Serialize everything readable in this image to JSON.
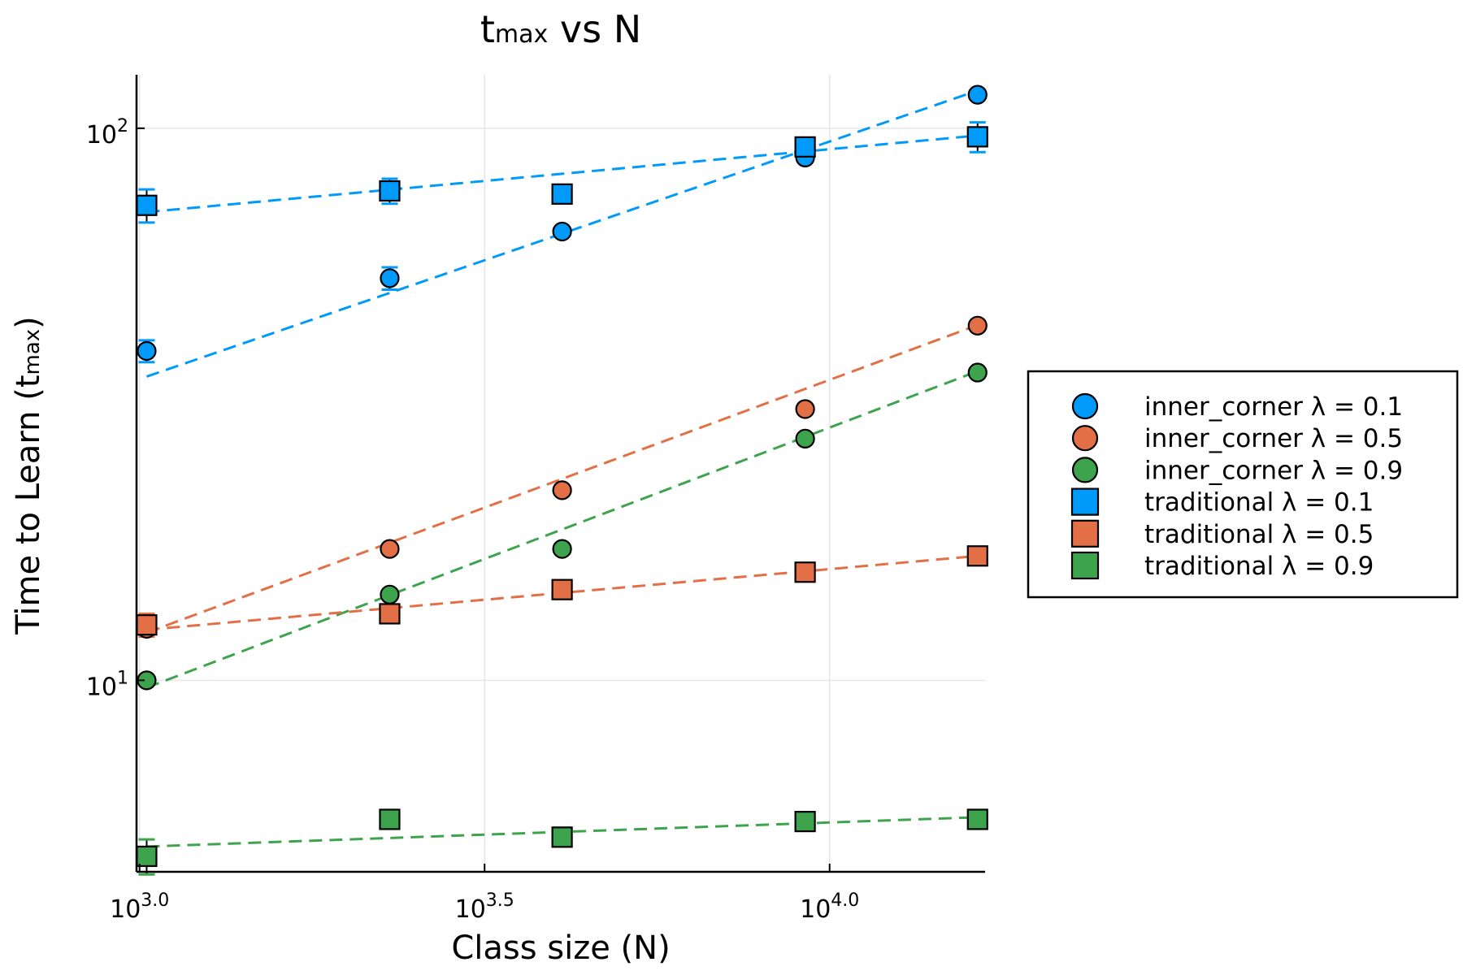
{
  "chart_data": {
    "type": "scatter",
    "title": "tmax vs N",
    "title_parts": {
      "main": "t",
      "sub": "max",
      "rest": " vs N"
    },
    "xlabel": "Class size (N)",
    "ylabel": "Time to Learn (tmax)",
    "ylabel_parts": {
      "main": "Time to Learn (t",
      "sub": "max",
      "rest": ")"
    },
    "x_scale": "log10",
    "y_scale": "log10",
    "xlim": [
      990,
      16800
    ],
    "ylim": [
      4.5,
      125
    ],
    "grid": true,
    "legend_position": "right",
    "x_ticks": [
      {
        "value": 1000,
        "base": "10",
        "exp": "3.0"
      },
      {
        "value": 3162.28,
        "base": "10",
        "exp": "3.5"
      },
      {
        "value": 10000,
        "base": "10",
        "exp": "4.0"
      }
    ],
    "y_ticks": [
      {
        "value": 10,
        "base": "10",
        "exp": "1"
      },
      {
        "value": 100,
        "base": "10",
        "exp": "2"
      }
    ],
    "x": [
      1024,
      2304,
      4096,
      9216,
      16384
    ],
    "series": [
      {
        "name": "inner_corner λ = 0.1",
        "marker": "circle",
        "color": "#009AFA",
        "values": [
          39.5,
          53.5,
          65.0,
          88.5,
          115.0
        ],
        "errors": [
          1.8,
          2.5,
          0,
          0,
          0
        ],
        "fit": [
          35.5,
          117.0
        ]
      },
      {
        "name": "inner_corner λ = 0.5",
        "marker": "circle",
        "color": "#E26F46",
        "values": [
          12.4,
          17.3,
          22.1,
          31.0,
          43.9
        ],
        "errors": [
          0,
          0,
          0,
          0,
          0
        ],
        "fit": [
          12.2,
          44.0
        ]
      },
      {
        "name": "inner_corner λ = 0.9",
        "marker": "circle",
        "color": "#3DA44D",
        "values": [
          10.0,
          14.3,
          17.3,
          27.4,
          36.1
        ],
        "errors": [
          0,
          0,
          0,
          0,
          0
        ],
        "fit": [
          9.7,
          36.3
        ]
      },
      {
        "name": "traditional λ = 0.1",
        "marker": "square",
        "color": "#009AFA",
        "values": [
          72.5,
          77.0,
          76.0,
          92.5,
          96.5
        ],
        "errors": [
          5.0,
          4.0,
          0,
          0,
          6.0
        ],
        "fit": [
          70.5,
          97.0
        ]
      },
      {
        "name": "traditional λ = 0.5",
        "marker": "square",
        "color": "#E26F46",
        "values": [
          12.6,
          13.2,
          14.6,
          15.7,
          16.8
        ],
        "errors": [
          0.6,
          0,
          0,
          0,
          0
        ],
        "fit": [
          12.35,
          16.8
        ]
      },
      {
        "name": "traditional λ = 0.9",
        "marker": "square",
        "color": "#3DA44D",
        "values": [
          4.8,
          5.6,
          5.2,
          5.55,
          5.6
        ],
        "errors": [
          0.35,
          0,
          0,
          0,
          0
        ],
        "fit": [
          5.0,
          5.65
        ]
      }
    ]
  }
}
